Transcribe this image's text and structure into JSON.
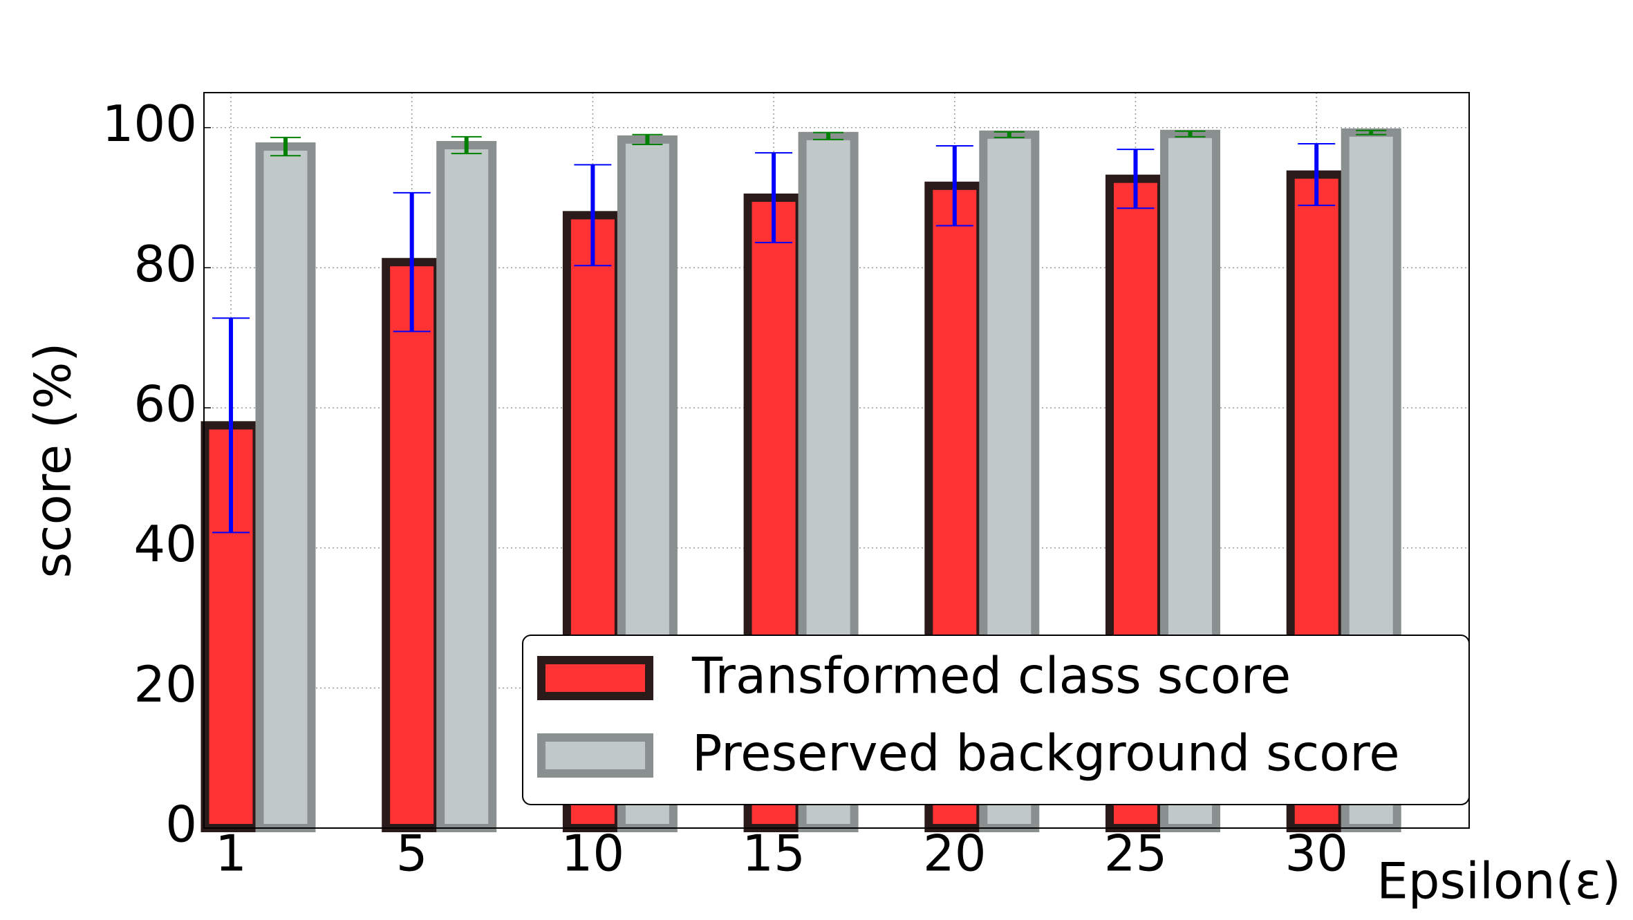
{
  "chart_data": {
    "type": "bar",
    "x_label": "Epsilon(ε)",
    "y_label": "score (%)",
    "categories": [
      "1",
      "5",
      "10",
      "15",
      "20",
      "25",
      "30"
    ],
    "series": [
      {
        "name": "Transformed class score",
        "color": "#ff3333",
        "edge_color": "#2b1a1a",
        "error_color": "#0000ff",
        "values": [
          57.5,
          80.8,
          87.5,
          90.0,
          91.7,
          92.7,
          93.3
        ],
        "errors": [
          15.3,
          9.9,
          7.2,
          6.4,
          5.7,
          4.2,
          4.4
        ]
      },
      {
        "name": "Preserved background score",
        "color": "#c0c8c8",
        "edge_color": "#8a8f8f",
        "error_color": "#008000",
        "values": [
          97.3,
          97.5,
          98.3,
          98.8,
          99.0,
          99.1,
          99.3
        ],
        "errors": [
          1.3,
          1.2,
          0.7,
          0.5,
          0.4,
          0.4,
          0.3
        ]
      }
    ],
    "ylim": [
      0,
      105
    ],
    "yticks": [
      0,
      20,
      40,
      60,
      80,
      100
    ],
    "grid": true,
    "legend": "lower right"
  }
}
